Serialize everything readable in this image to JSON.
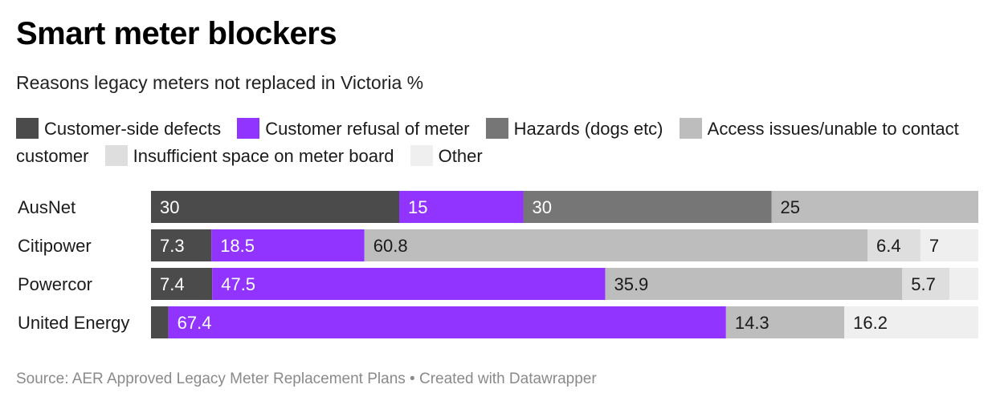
{
  "header": {
    "title": "Smart meter blockers",
    "subtitle": "Reasons legacy meters not replaced in Victoria %"
  },
  "footer": {
    "source": "Source: AER Approved Legacy Meter Replacement Plans • Created with Datawrapper"
  },
  "chart_data": {
    "type": "bar",
    "orientation": "horizontal",
    "stacked": true,
    "title": "Smart meter blockers",
    "subtitle": "Reasons legacy meters not replaced in Victoria %",
    "xlim": [
      0,
      100
    ],
    "grid": false,
    "legend_position": "top",
    "categories": [
      "AusNet",
      "Citipower",
      "Powercor",
      "United Energy"
    ],
    "series": [
      {
        "name": "Customer-side defects",
        "color": "#4b4b4b",
        "text_color": "#ffffff",
        "values": [
          30,
          7.3,
          7.4,
          2.1
        ],
        "labels": [
          "30",
          "7.3",
          "7.4",
          ""
        ]
      },
      {
        "name": "Customer refusal of meter",
        "color": "#9234ff",
        "text_color": "#ffffff",
        "values": [
          15,
          18.5,
          47.5,
          67.4
        ],
        "labels": [
          "15",
          "18.5",
          "47.5",
          "67.4"
        ]
      },
      {
        "name": "Hazards (dogs etc)",
        "color": "#767676",
        "text_color": "#ffffff",
        "values": [
          30,
          0,
          0,
          0
        ],
        "labels": [
          "30",
          "",
          "",
          ""
        ]
      },
      {
        "name": "Access issues/unable to contact customer",
        "color": "#bdbdbd",
        "text_color": "#1a1a1a",
        "values": [
          25,
          60.8,
          35.9,
          14.3
        ],
        "labels": [
          "25",
          "60.8",
          "35.9",
          "14.3"
        ]
      },
      {
        "name": "Insufficient space on meter board",
        "color": "#dedede",
        "text_color": "#1a1a1a",
        "values": [
          0,
          6.4,
          5.7,
          0
        ],
        "labels": [
          "",
          "6.4",
          "5.7",
          ""
        ]
      },
      {
        "name": "Other",
        "color": "#efefef",
        "text_color": "#1a1a1a",
        "values": [
          0,
          7,
          3.5,
          16.2
        ],
        "labels": [
          "",
          "7",
          "",
          "16.2"
        ]
      }
    ]
  }
}
